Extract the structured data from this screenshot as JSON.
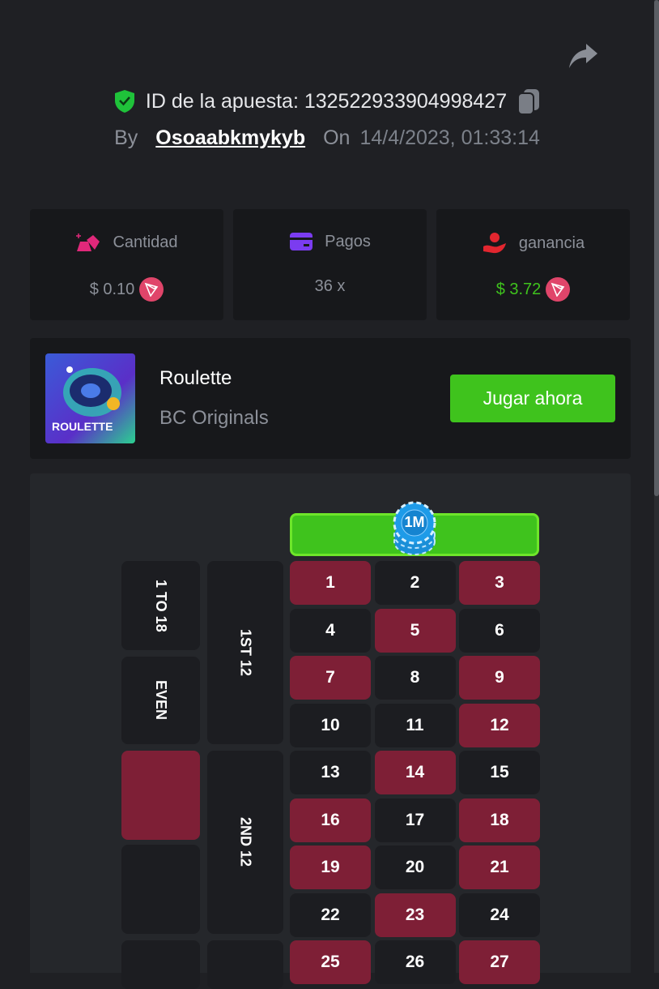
{
  "header": {
    "bet_id_label": "ID de la apuesta: 132522933904998427",
    "by_label": "By",
    "username": "Osoaabkmykyb",
    "on_label": "On",
    "datetime": "14/4/2023, 01:33:14"
  },
  "stats": [
    {
      "label": "Cantidad",
      "value": "$ 0.10",
      "icon": "gold-bars-icon",
      "currency_icon": "tron-icon"
    },
    {
      "label": "Pagos",
      "value": "36 x",
      "icon": "card-icon"
    },
    {
      "label": "ganancia",
      "value": "$ 3.72",
      "icon": "hand-user-icon",
      "currency_icon": "tron-icon",
      "value_color": "#3fc31d"
    }
  ],
  "game": {
    "name": "Roulette",
    "provider": "BC Originals",
    "thumb_text": "ROULETTE",
    "play_label": "Jugar ahora"
  },
  "board": {
    "chip_label": "1M",
    "zero_color": "#3fc31d",
    "outside": [
      "1 TO 18",
      "EVEN",
      "",
      "",
      ""
    ],
    "dozens": [
      "1ST 12",
      "2ND 12",
      ""
    ],
    "numbers": [
      {
        "n": "1",
        "c": "red"
      },
      {
        "n": "2",
        "c": "black"
      },
      {
        "n": "3",
        "c": "red"
      },
      {
        "n": "4",
        "c": "black"
      },
      {
        "n": "5",
        "c": "red"
      },
      {
        "n": "6",
        "c": "black"
      },
      {
        "n": "7",
        "c": "red"
      },
      {
        "n": "8",
        "c": "black"
      },
      {
        "n": "9",
        "c": "red"
      },
      {
        "n": "10",
        "c": "black"
      },
      {
        "n": "11",
        "c": "black"
      },
      {
        "n": "12",
        "c": "red"
      },
      {
        "n": "13",
        "c": "black"
      },
      {
        "n": "14",
        "c": "red"
      },
      {
        "n": "15",
        "c": "black"
      },
      {
        "n": "16",
        "c": "red"
      },
      {
        "n": "17",
        "c": "black"
      },
      {
        "n": "18",
        "c": "red"
      },
      {
        "n": "19",
        "c": "red"
      },
      {
        "n": "20",
        "c": "black"
      },
      {
        "n": "21",
        "c": "red"
      },
      {
        "n": "22",
        "c": "black"
      },
      {
        "n": "23",
        "c": "red"
      },
      {
        "n": "24",
        "c": "black"
      },
      {
        "n": "25",
        "c": "red"
      },
      {
        "n": "26",
        "c": "black"
      },
      {
        "n": "27",
        "c": "red"
      }
    ]
  }
}
